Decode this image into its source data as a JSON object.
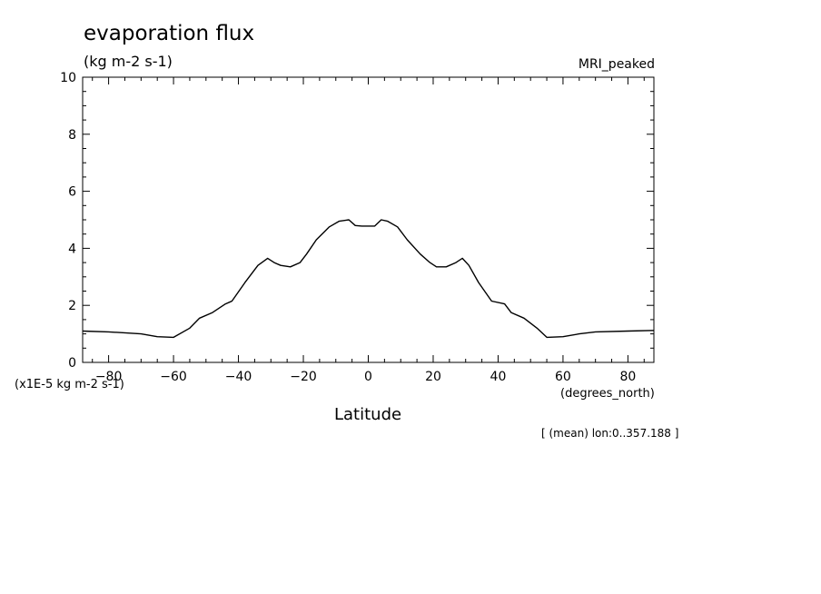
{
  "chart_data": {
    "type": "line",
    "title": "evaporation flux",
    "subtitle": "(kg m-2 s-1)",
    "model_label": "MRI_peaked",
    "xlabel": "Latitude",
    "x_units": "(degrees_north)",
    "y_scale_note": "(x1E-5 kg m-2 s-1)",
    "footnote": "[ (mean) lon:0..357.188 ]",
    "xlim": [
      -88,
      88
    ],
    "ylim": [
      0,
      10
    ],
    "x_ticks": [
      -80,
      -60,
      -40,
      -20,
      0,
      20,
      40,
      60,
      80
    ],
    "y_ticks": [
      0,
      2,
      4,
      6,
      8,
      10
    ],
    "grid": false,
    "series": [
      {
        "x": [
          -88,
          -80,
          -70,
          -65,
          -60,
          -55,
          -52,
          -48,
          -44,
          -42,
          -38,
          -34,
          -31,
          -29,
          -27,
          -24,
          -21,
          -19,
          -16,
          -12,
          -9,
          -6,
          -4,
          -2,
          2,
          4,
          6,
          9,
          12,
          16,
          19,
          21,
          24,
          27,
          29,
          31,
          34,
          38,
          42,
          44,
          48,
          52,
          55,
          60,
          65,
          70,
          80,
          88
        ],
        "y": [
          1.1,
          1.07,
          1.0,
          0.9,
          0.88,
          1.2,
          1.55,
          1.75,
          2.05,
          2.15,
          2.8,
          3.4,
          3.65,
          3.5,
          3.4,
          3.35,
          3.5,
          3.8,
          4.3,
          4.75,
          4.95,
          5.0,
          4.8,
          4.78,
          4.78,
          5.0,
          4.95,
          4.75,
          4.3,
          3.8,
          3.5,
          3.35,
          3.35,
          3.5,
          3.65,
          3.4,
          2.8,
          2.15,
          2.05,
          1.75,
          1.55,
          1.2,
          0.88,
          0.9,
          1.0,
          1.07,
          1.1,
          1.12
        ]
      }
    ]
  }
}
